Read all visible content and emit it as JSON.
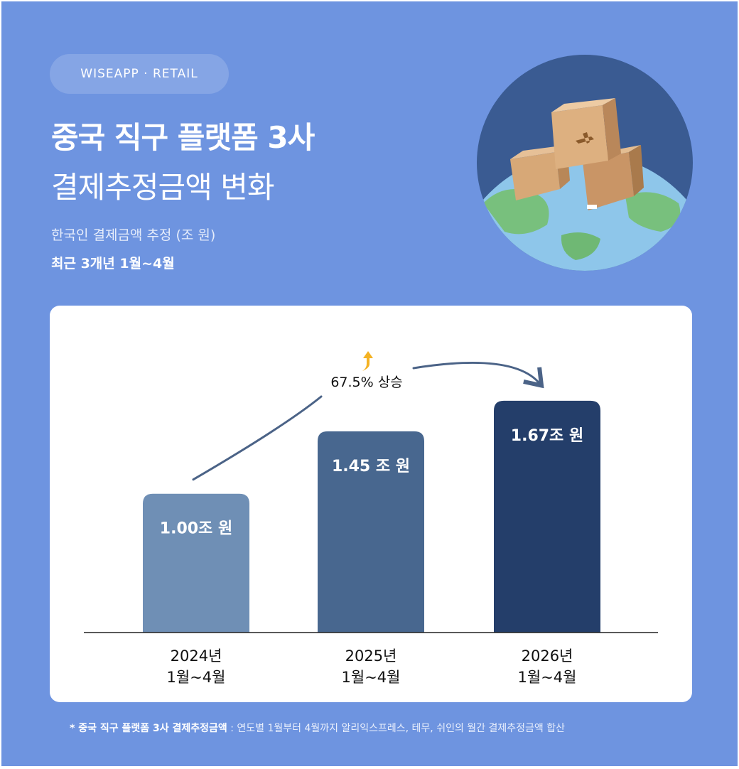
{
  "brand": "WISEAPP · RETAIL",
  "title_line1": "중국 직구 플랫폼 3사",
  "title_line2": "결제추정금액 변화",
  "subtitle": "한국인 결제금액 추정 (조 원)",
  "period": "최근 3개년 1월~4월",
  "colors": {
    "background": "#6e94e0",
    "bar_2024": "#6f8fb5",
    "bar_2025": "#48678f",
    "bar_2026": "#243e6a",
    "arrow": "#4b6387",
    "growth_icon": "#f4b223"
  },
  "chart_data": {
    "type": "bar",
    "categories": [
      [
        "2024년",
        "1월~4월"
      ],
      [
        "2025년",
        "1월~4월"
      ],
      [
        "2026년",
        "1월~4월"
      ]
    ],
    "values": [
      1.0,
      1.45,
      1.67
    ],
    "value_labels": [
      "1.00조 원",
      "1.45 조 원",
      "1.67조 원"
    ],
    "ylim": [
      0,
      1.7
    ],
    "annotation": "67.5% 상승",
    "annotation_icon": "up-arrow-icon"
  },
  "footnote": {
    "key": "* 중국 직구 플랫폼 3사 결제추정금액",
    "desc": " : 연도별 1월부터 4월까지 알리익스프레스, 테무, 쉬인의 월간 결제추정금액 합산"
  }
}
